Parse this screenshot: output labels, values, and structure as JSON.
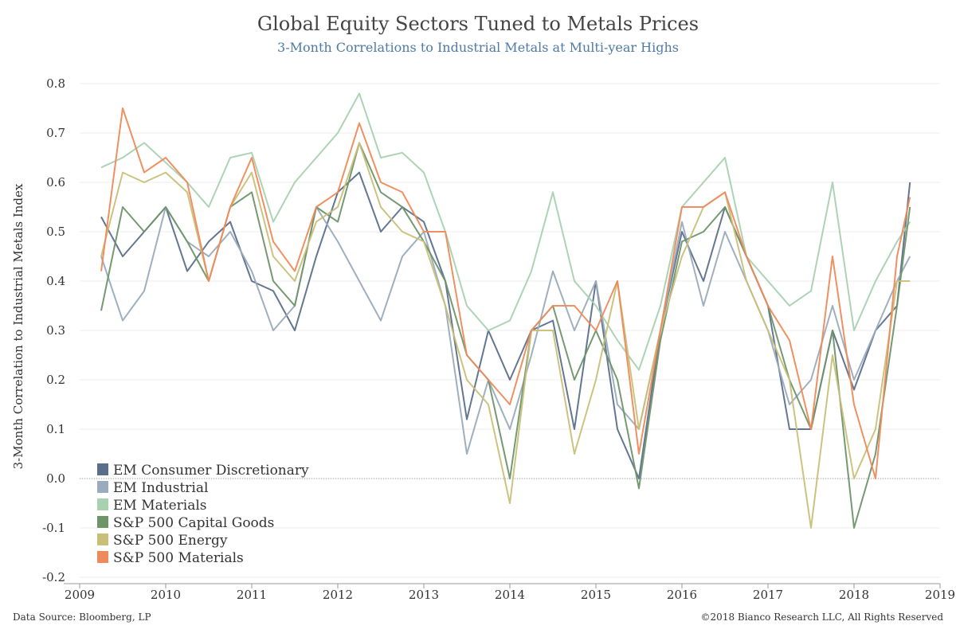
{
  "title": "Global Equity Sectors Tuned to Metals Prices",
  "subtitle": "3-Month Correlations to Industrial Metals at Multi-year Highs",
  "footer": {
    "source": "Data Source: Bloomberg, LP",
    "copyright": "©2018 Bianco Research LLC, All Rights Reserved"
  },
  "chart_data": {
    "type": "line",
    "title": "Global Equity Sectors Tuned to Metals Prices",
    "subtitle": "3-Month Correlations to Industrial Metals at Multi-year Highs",
    "ylabel": "3-Month Correlation to Industrial Metals Index",
    "xlabel": "",
    "xlim": [
      2009,
      2019
    ],
    "ylim": [
      -0.2,
      0.8
    ],
    "xticks": [
      "2009",
      "2010",
      "2011",
      "2012",
      "2013",
      "2014",
      "2015",
      "2016",
      "2017",
      "2018",
      "2019"
    ],
    "yticks": [
      "0.8",
      "0.7",
      "0.6",
      "0.5",
      "0.4",
      "0.3",
      "0.2",
      "0.1",
      "0.0",
      "-0.1",
      "-0.2"
    ],
    "grid": true,
    "legend_position": "bottom-left",
    "x": [
      2009.25,
      2009.5,
      2009.75,
      2010.0,
      2010.25,
      2010.5,
      2010.75,
      2011.0,
      2011.25,
      2011.5,
      2011.75,
      2012.0,
      2012.25,
      2012.5,
      2012.75,
      2013.0,
      2013.25,
      2013.5,
      2013.75,
      2014.0,
      2014.25,
      2014.5,
      2014.75,
      2015.0,
      2015.25,
      2015.5,
      2015.75,
      2016.0,
      2016.25,
      2016.5,
      2016.75,
      2017.0,
      2017.25,
      2017.5,
      2017.75,
      2018.0,
      2018.25,
      2018.5,
      2018.65
    ],
    "series": [
      {
        "name": "EM Consumer Discretionary",
        "color": "#5b6f8c",
        "values": [
          0.53,
          0.45,
          0.5,
          0.55,
          0.42,
          0.48,
          0.52,
          0.4,
          0.38,
          0.3,
          0.45,
          0.58,
          0.62,
          0.5,
          0.55,
          0.52,
          0.4,
          0.12,
          0.3,
          0.2,
          0.3,
          0.32,
          0.1,
          0.4,
          0.1,
          0.0,
          0.3,
          0.5,
          0.4,
          0.55,
          0.45,
          0.35,
          0.1,
          0.1,
          0.3,
          0.18,
          0.3,
          0.35,
          0.6
        ]
      },
      {
        "name": "EM Industrial",
        "color": "#9aabbd",
        "values": [
          0.45,
          0.32,
          0.38,
          0.55,
          0.48,
          0.45,
          0.5,
          0.42,
          0.3,
          0.35,
          0.55,
          0.48,
          0.4,
          0.32,
          0.45,
          0.5,
          0.35,
          0.05,
          0.2,
          0.1,
          0.25,
          0.42,
          0.3,
          0.4,
          0.15,
          0.1,
          0.3,
          0.52,
          0.35,
          0.5,
          0.4,
          0.3,
          0.15,
          0.2,
          0.35,
          0.2,
          0.3,
          0.4,
          0.45
        ]
      },
      {
        "name": "EM Materials",
        "color": "#a8d1b0",
        "values": [
          0.63,
          0.65,
          0.68,
          0.64,
          0.6,
          0.55,
          0.65,
          0.66,
          0.52,
          0.6,
          0.65,
          0.7,
          0.78,
          0.65,
          0.66,
          0.62,
          0.5,
          0.35,
          0.3,
          0.32,
          0.42,
          0.58,
          0.4,
          0.35,
          0.28,
          0.22,
          0.35,
          0.55,
          0.6,
          0.65,
          0.45,
          0.4,
          0.35,
          0.38,
          0.6,
          0.3,
          0.4,
          0.48,
          0.52
        ]
      },
      {
        "name": "S&P 500 Capital Goods",
        "color": "#6e9469",
        "values": [
          0.34,
          0.55,
          0.5,
          0.55,
          0.48,
          0.4,
          0.55,
          0.58,
          0.4,
          0.35,
          0.55,
          0.52,
          0.68,
          0.58,
          0.55,
          0.48,
          0.4,
          0.25,
          0.2,
          0.0,
          0.3,
          0.35,
          0.2,
          0.3,
          0.2,
          -0.02,
          0.28,
          0.48,
          0.5,
          0.55,
          0.45,
          0.35,
          0.2,
          0.1,
          0.3,
          -0.1,
          0.05,
          0.35,
          0.55
        ]
      },
      {
        "name": "S&P 500 Energy",
        "color": "#c8c078",
        "values": [
          0.45,
          0.62,
          0.6,
          0.62,
          0.58,
          0.4,
          0.55,
          0.62,
          0.45,
          0.4,
          0.52,
          0.55,
          0.68,
          0.55,
          0.5,
          0.48,
          0.35,
          0.2,
          0.15,
          -0.05,
          0.3,
          0.3,
          0.05,
          0.2,
          0.4,
          0.1,
          0.3,
          0.45,
          0.55,
          0.58,
          0.4,
          0.3,
          0.2,
          -0.1,
          0.25,
          0.0,
          0.1,
          0.4,
          0.4
        ]
      },
      {
        "name": "S&P 500 Materials",
        "color": "#ef8a5a",
        "values": [
          0.42,
          0.75,
          0.62,
          0.65,
          0.6,
          0.4,
          0.55,
          0.65,
          0.48,
          0.42,
          0.55,
          0.58,
          0.72,
          0.6,
          0.58,
          0.5,
          0.5,
          0.25,
          0.2,
          0.15,
          0.3,
          0.35,
          0.35,
          0.3,
          0.4,
          0.05,
          0.3,
          0.55,
          0.55,
          0.58,
          0.45,
          0.35,
          0.28,
          0.1,
          0.45,
          0.15,
          0.0,
          0.45,
          0.57
        ]
      }
    ]
  }
}
